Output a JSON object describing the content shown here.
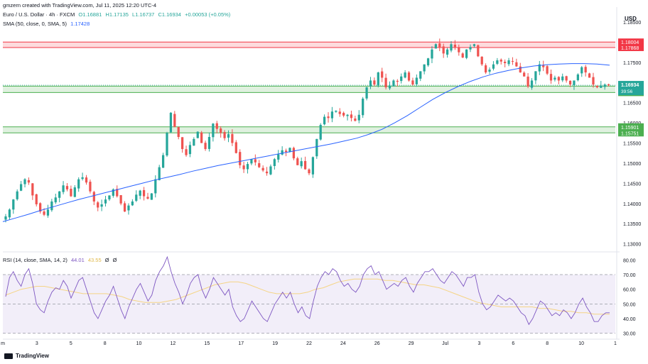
{
  "header": {
    "credit": "gmzern created with TradingView.com, Jul 11, 2025 12:20 UTC-4",
    "symbol": "Euro / U.S. Dollar · 4h · FXCM",
    "open": "O1.16881",
    "high": "H1.17135",
    "low": "L1.16737",
    "close": "C1.16934",
    "change": "+0.00053 (+0.05%)",
    "sma_label": "SMA (50, close, 0, SMA, 5)",
    "sma_value": "1.17428",
    "currency": "USD"
  },
  "rsi_header": {
    "label": "RSI (14, close, SMA, 14, 2)",
    "rsi_value": "44.01",
    "ma_value": "43.55",
    "extra1": "Ø",
    "extra2": "Ø"
  },
  "footer": {
    "brand": "TradingView"
  },
  "colors": {
    "up": "#26a69a",
    "down": "#ef5350",
    "sma": "#2962ff",
    "rsi": "#7e57c2",
    "rsi_ma": "#f5d485",
    "resistance": "#f23645",
    "support": "#4caf50"
  },
  "chart_data": [
    {
      "type": "candlestick",
      "symbol": "EURUSD",
      "timeframe": "4h",
      "y_axis_ticks": [
        "1.18500",
        "1.17500",
        "1.16500",
        "1.16000",
        "1.15500",
        "1.15000",
        "1.14500",
        "1.14000",
        "1.13500",
        "1.13000"
      ],
      "ylim": [
        1.128,
        1.188
      ],
      "x_axis_ticks": [
        "m",
        "3",
        "5",
        "8",
        "10",
        "12",
        "15",
        "17",
        "19",
        "22",
        "24",
        "26",
        "29",
        "Jul",
        "3",
        "6",
        "8",
        "10",
        "1"
      ],
      "price_levels": [
        {
          "label": "1.18004",
          "value": 1.18004,
          "zone": "resistance"
        },
        {
          "label": "1.17868",
          "value": 1.17868,
          "zone": "resistance"
        },
        {
          "label": "1.16910",
          "value": 1.1691,
          "zone": "support"
        },
        {
          "label": "1.16752",
          "value": 1.16752,
          "zone": "support"
        },
        {
          "label": "1.15901",
          "value": 1.15901,
          "zone": "support"
        },
        {
          "label": "1.15751",
          "value": 1.15751,
          "zone": "support"
        }
      ],
      "last_price": {
        "label": "1.16934",
        "countdown": "39:56",
        "value": 1.16934
      },
      "close_path": [
        1.1368,
        1.1385,
        1.141,
        1.143,
        1.1448,
        1.146,
        1.1452,
        1.142,
        1.1398,
        1.138,
        1.1372,
        1.1385,
        1.1405,
        1.1415,
        1.143,
        1.1445,
        1.1435,
        1.1418,
        1.144,
        1.146,
        1.1465,
        1.1452,
        1.143,
        1.1405,
        1.139,
        1.1398,
        1.141,
        1.142,
        1.1435,
        1.1418,
        1.14,
        1.138,
        1.1395,
        1.1405,
        1.1422,
        1.1432,
        1.1418,
        1.1412,
        1.1425,
        1.146,
        1.149,
        1.152,
        1.1575,
        1.1625,
        1.159,
        1.1565,
        1.1535,
        1.152,
        1.1545,
        1.156,
        1.1578,
        1.155,
        1.1535,
        1.1565,
        1.1598,
        1.1585,
        1.1575,
        1.1562,
        1.1572,
        1.155,
        1.1525,
        1.1495,
        1.1485,
        1.1498,
        1.151,
        1.1502,
        1.149,
        1.1482,
        1.1475,
        1.1492,
        1.151,
        1.1522,
        1.1532,
        1.1528,
        1.1538,
        1.1512,
        1.1495,
        1.1505,
        1.1485,
        1.1475,
        1.1515,
        1.156,
        1.1595,
        1.1615,
        1.1612,
        1.1628,
        1.163,
        1.1622,
        1.1618,
        1.162,
        1.1612,
        1.1605,
        1.162,
        1.166,
        1.1688,
        1.1705,
        1.1695,
        1.1725,
        1.1712,
        1.1688,
        1.1692,
        1.1705,
        1.1702,
        1.1715,
        1.1725,
        1.1705,
        1.1695,
        1.1712,
        1.1728,
        1.1745,
        1.176,
        1.1782,
        1.1795,
        1.1788,
        1.1772,
        1.1782,
        1.1795,
        1.1788,
        1.1775,
        1.1762,
        1.1782,
        1.1788,
        1.1795,
        1.1765,
        1.1745,
        1.1725,
        1.1732,
        1.1745,
        1.1755,
        1.1752,
        1.1748,
        1.1755,
        1.1752,
        1.174,
        1.1725,
        1.1715,
        1.169,
        1.1705,
        1.1728,
        1.1745,
        1.1738,
        1.1722,
        1.1705,
        1.1712,
        1.1705,
        1.1715,
        1.1705,
        1.1695,
        1.1705,
        1.172,
        1.1738,
        1.1725,
        1.1712,
        1.1695,
        1.1688,
        1.1692,
        1.1695,
        1.1693
      ],
      "sma_path": [
        1.1355,
        1.1364,
        1.1373,
        1.1383,
        1.1392,
        1.1401,
        1.141,
        1.1418,
        1.1426,
        1.1434,
        1.1442,
        1.145,
        1.1458,
        1.1465,
        1.1472,
        1.148,
        1.1487,
        1.1494,
        1.15,
        1.1506,
        1.1512,
        1.1518,
        1.1524,
        1.153,
        1.1536,
        1.1542,
        1.1548,
        1.1555,
        1.1562,
        1.1572,
        1.1584,
        1.16,
        1.1618,
        1.1638,
        1.1658,
        1.1675,
        1.169,
        1.1703,
        1.1714,
        1.1723,
        1.173,
        1.1736,
        1.1741,
        1.1744,
        1.1746,
        1.1747,
        1.1747,
        1.1746,
        1.1743
      ]
    },
    {
      "type": "line",
      "name": "RSI",
      "y_axis_ticks": [
        "80.00",
        "70.00",
        "60.00",
        "50.00",
        "40.00",
        "30.00"
      ],
      "ylim": [
        26,
        84
      ],
      "bands": [
        70,
        50,
        30
      ],
      "rsi_path": [
        55,
        68,
        72,
        66,
        62,
        70,
        74,
        64,
        50,
        46,
        44,
        52,
        58,
        61,
        60,
        66,
        62,
        54,
        60,
        66,
        68,
        60,
        52,
        44,
        40,
        46,
        52,
        56,
        62,
        54,
        46,
        40,
        48,
        54,
        60,
        64,
        58,
        52,
        56,
        66,
        72,
        76,
        82,
        72,
        64,
        58,
        50,
        56,
        64,
        68,
        70,
        60,
        54,
        60,
        68,
        64,
        60,
        56,
        60,
        48,
        42,
        38,
        40,
        46,
        52,
        48,
        44,
        40,
        38,
        44,
        50,
        54,
        58,
        54,
        58,
        50,
        44,
        48,
        42,
        40,
        52,
        62,
        68,
        72,
        70,
        74,
        72,
        66,
        62,
        64,
        60,
        58,
        62,
        70,
        74,
        76,
        70,
        72,
        66,
        60,
        62,
        64,
        62,
        66,
        68,
        62,
        58,
        64,
        68,
        72,
        72,
        74,
        70,
        66,
        64,
        68,
        72,
        70,
        66,
        62,
        68,
        68,
        70,
        58,
        50,
        46,
        48,
        52,
        56,
        54,
        52,
        54,
        52,
        48,
        44,
        42,
        36,
        40,
        46,
        52,
        50,
        46,
        42,
        44,
        42,
        46,
        44,
        40,
        44,
        50,
        54,
        48,
        44,
        38,
        38,
        42,
        44,
        44
      ],
      "rsi_ma_path": [
        56,
        58,
        60,
        61,
        62,
        62,
        61,
        60,
        59,
        58,
        57,
        57,
        57,
        57,
        56,
        55,
        53,
        52,
        51,
        51,
        51,
        52,
        53,
        55,
        57,
        59,
        61,
        63,
        64,
        65,
        65,
        64,
        62,
        60,
        58,
        57,
        57,
        57,
        57,
        58,
        60,
        61,
        63,
        65,
        66,
        67,
        67,
        67,
        67,
        66,
        66,
        65,
        64,
        63,
        63,
        62,
        61,
        59,
        57,
        55,
        53,
        51,
        50,
        49,
        48,
        48,
        48,
        48,
        48,
        47,
        47,
        46,
        45,
        45,
        44,
        44,
        43,
        43,
        43
      ]
    }
  ]
}
